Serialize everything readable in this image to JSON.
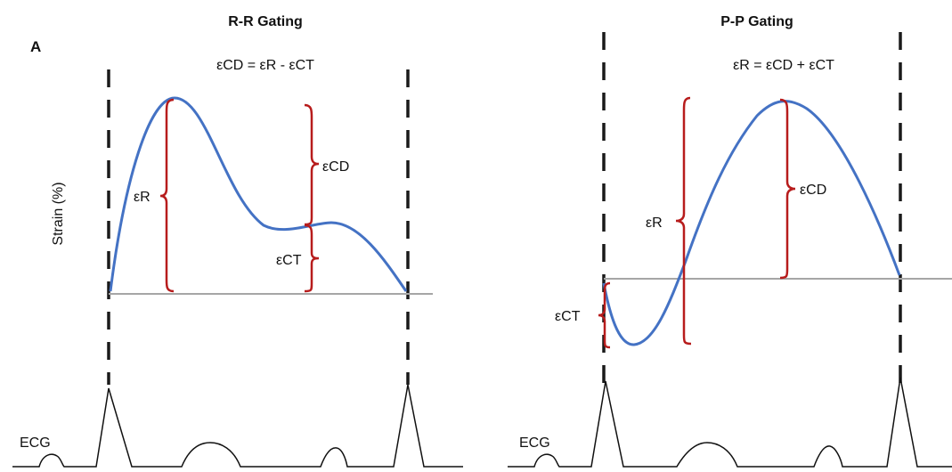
{
  "panel_letter": "A",
  "colors": {
    "strain_curve": "#4472c4",
    "brace": "#b71c1c",
    "baseline": "#a6a6a6",
    "gating_line": "#1a1a1a",
    "ecg": "#111111"
  },
  "y_axis_label": "Strain (%)",
  "left_panel": {
    "title": "R-R Gating",
    "equation": "εCD = εR - εCT",
    "labels": {
      "eR": "εR",
      "eCD": "εCD",
      "eCT": "εCT"
    },
    "ecg_label": "ECG"
  },
  "right_panel": {
    "title": "P-P Gating",
    "equation": "εR = εCD + εCT",
    "labels": {
      "eR": "εR",
      "eCD": "εCD",
      "eCT": "εCT"
    },
    "ecg_label": "ECG"
  }
}
